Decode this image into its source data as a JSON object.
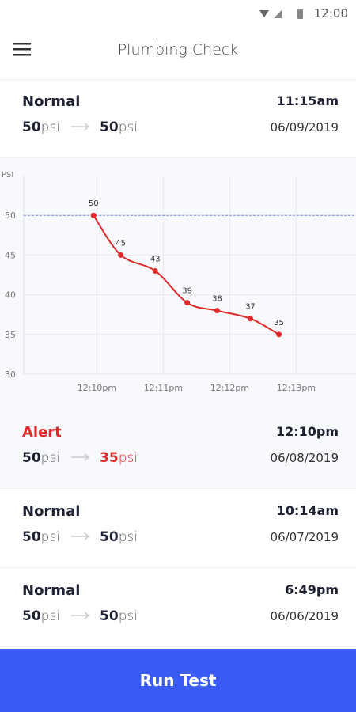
{
  "status_bar": {
    "time": "12:00"
  },
  "header": {
    "title": "Plumbing Check"
  },
  "records": [
    {
      "status": "Normal",
      "time": "11:15am",
      "from_value": 50,
      "from_unit": "psi",
      "to_value": 50,
      "to_unit": "psi",
      "date": "06/09/2019",
      "color": "#1f2233"
    },
    {
      "status": "Alert",
      "time": "12:10pm",
      "from_value": 50,
      "from_unit": "psi",
      "to_value": 35,
      "to_unit": "psi",
      "date": "06/08/2019",
      "color": "#e02a2a"
    },
    {
      "status": "Normal",
      "time": "10:14am",
      "from_value": 50,
      "from_unit": "psi",
      "to_value": 50,
      "to_unit": "psi",
      "date": "06/07/2019",
      "color": "#1f2233"
    },
    {
      "status": "Normal",
      "time": "6:49pm",
      "from_value": 50,
      "from_unit": "psi",
      "to_value": 50,
      "to_unit": "psi",
      "date": "06/06/2019",
      "color": "#1f2233"
    }
  ],
  "chart_data": {
    "type": "line",
    "y_label": "PSI",
    "x": [
      729.95,
      730.36,
      730.88,
      731.36,
      731.81,
      732.31,
      732.74
    ],
    "values": [
      50,
      45,
      43,
      39,
      38,
      37,
      35
    ],
    "color": "#e02a2a",
    "xlim": [
      728.9,
      733.9
    ],
    "xticks": [
      {
        "value": 730,
        "label": "12:10pm"
      },
      {
        "value": 731,
        "label": "12:11pm"
      },
      {
        "value": 732,
        "label": "12:12pm"
      },
      {
        "value": 733,
        "label": "12:13pm"
      }
    ],
    "ylim": [
      30,
      55
    ],
    "yticks": [
      30,
      35,
      40,
      45,
      50
    ],
    "reference_line": 50,
    "reference_color": "#7b8cf0",
    "grid": true
  },
  "button": {
    "label": "Run Test"
  }
}
